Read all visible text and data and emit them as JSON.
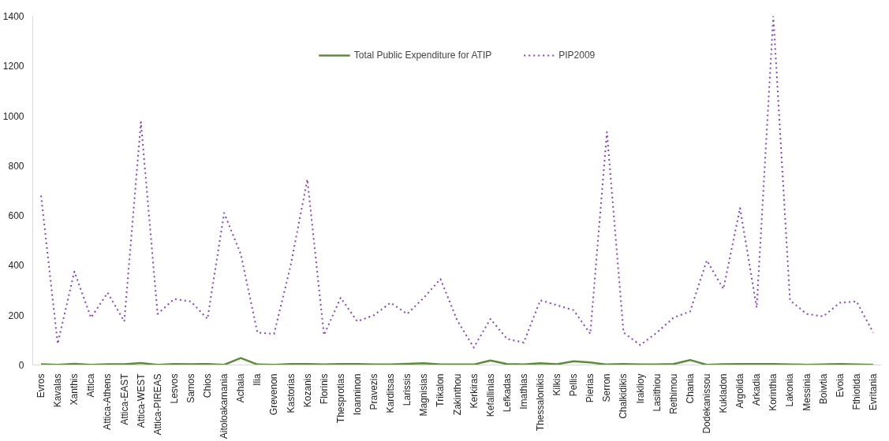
{
  "chart_data": {
    "type": "line",
    "categories": [
      "Evros",
      "Kavalas",
      "Xanthis",
      "Attica",
      "Attica-Athens",
      "Attica-EAST",
      "Attica-WEST",
      "Attica-PIREAS",
      "Lesvos",
      "Samos",
      "Chios",
      "Aitoloakarnania",
      "Achaia",
      "Ilia",
      "Grevenon",
      "Kastorias",
      "Kozanis",
      "Florinis",
      "Thesprotias",
      "Ioanninon",
      "Pravezis",
      "Karditsas",
      "Larissis",
      "Magnisias",
      "Trikalon",
      "Zakinthou",
      "Kerkiras",
      "Kefallinias",
      "Lefkadas",
      "Imathias",
      "Thessalonikis",
      "Kilkis",
      "Pellis",
      "Pierias",
      "Serron",
      "Chalkidikis",
      "Iraklioy",
      "Lasithiou",
      "Rethimou",
      "Chania",
      "Dodekanissou",
      "Kukladon",
      "Argolida",
      "Arkadia",
      "Korinthia",
      "Lakonia",
      "Messinia",
      "Boiwtia",
      "Evoia",
      "Fthiotida",
      "Evritania"
    ],
    "series": [
      {
        "name": "Total Public Expenditure for ATIP",
        "color": "#5b8c3a",
        "line_style": "solid",
        "values": [
          3,
          1,
          5,
          1,
          3,
          3,
          8,
          1,
          4,
          3,
          4,
          1,
          28,
          2,
          1,
          4,
          4,
          2,
          4,
          4,
          2,
          2,
          5,
          7,
          2,
          2,
          2,
          18,
          4,
          2,
          7,
          3,
          15,
          10,
          2,
          4,
          2,
          2,
          4,
          20,
          1,
          3,
          4,
          4,
          4,
          2,
          1,
          2,
          4,
          2,
          1
        ]
      },
      {
        "name": "PIP2009",
        "color": "#8a3fc8",
        "line_style": "dotted",
        "values": [
          680,
          85,
          375,
          190,
          290,
          175,
          975,
          205,
          265,
          255,
          185,
          610,
          445,
          130,
          125,
          400,
          745,
          120,
          270,
          175,
          200,
          250,
          205,
          270,
          345,
          180,
          70,
          185,
          105,
          90,
          260,
          240,
          220,
          125,
          935,
          130,
          80,
          130,
          190,
          215,
          420,
          305,
          630,
          230,
          1400,
          260,
          205,
          195,
          250,
          255,
          130
        ]
      }
    ],
    "ylim": [
      0,
      1400
    ],
    "yticks": [
      0,
      200,
      400,
      600,
      800,
      1000,
      1200,
      1400
    ],
    "grid": false,
    "legend": "top",
    "marker": "none"
  }
}
